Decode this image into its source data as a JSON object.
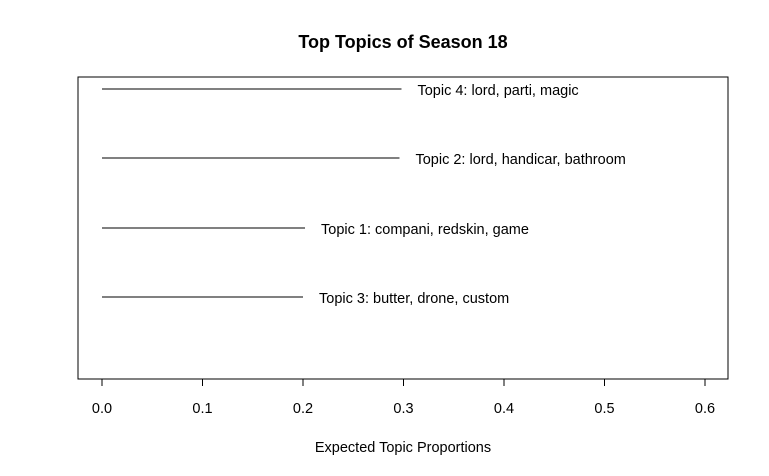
{
  "chart_data": {
    "type": "bar",
    "title": "Top Topics of Season 18",
    "xlabel": "Expected Topic Proportions",
    "ylabel": "",
    "xlim": [
      0.0,
      0.6
    ],
    "grid": false,
    "orientation": "horizontal",
    "x_ticks": [
      "0.0",
      "0.1",
      "0.2",
      "0.3",
      "0.4",
      "0.5",
      "0.6"
    ],
    "categories": [
      "Topic 4: lord, parti, magic",
      "Topic 2: lord, handicar, bathroom",
      "Topic 1: compani, redskin, game",
      "Topic 3: butter, drone, custom"
    ],
    "values": [
      0.298,
      0.296,
      0.202,
      0.2
    ]
  }
}
